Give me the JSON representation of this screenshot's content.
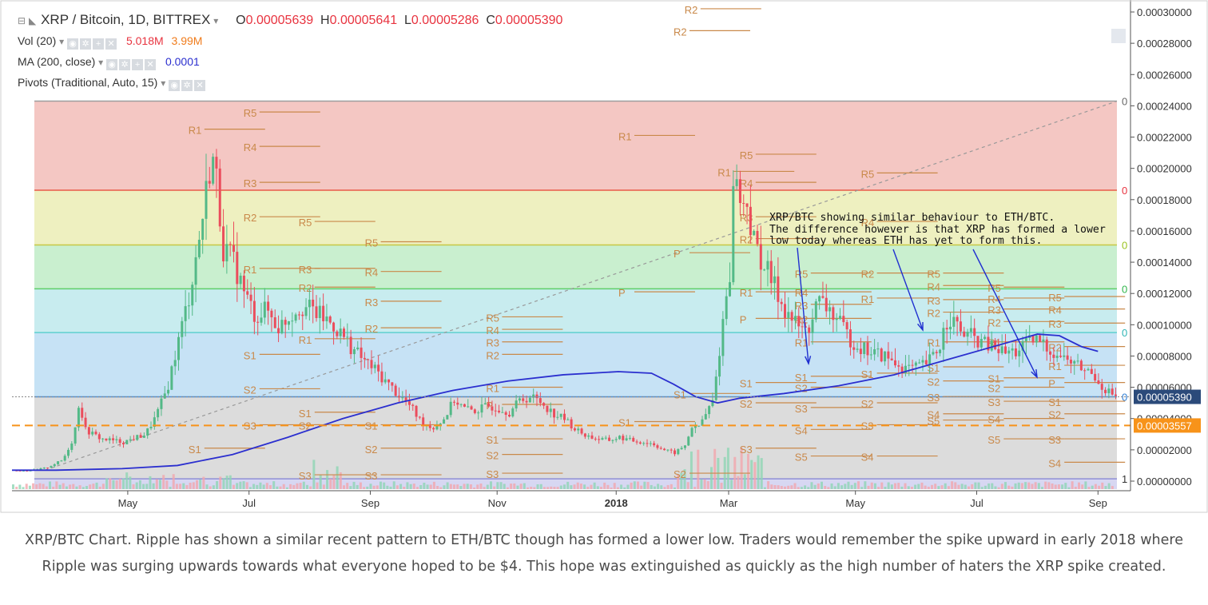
{
  "header": {
    "title": "XRP / Bitcoin, 1D, BITTREX",
    "ohlc": [
      {
        "k": "O",
        "v": "0.00005639"
      },
      {
        "k": "H",
        "v": "0.00005641"
      },
      {
        "k": "L",
        "v": "0.00005286"
      },
      {
        "k": "C",
        "v": "0.00005390"
      }
    ],
    "vol_label": "Vol (20)",
    "vol_val1": "5.018M",
    "vol_val2": "3.99M",
    "ma_label": "MA (200, close)",
    "ma_val": "0.0001",
    "pivots_label": "Pivots (Traditional, Auto, 15)"
  },
  "annotation": "XRP/BTC showing similar behaviour to ETH/BTC.\nThe difference however is that XRP has formed a lower\nlow today whereas ETH has yet to form this.",
  "caption": "XRP/BTC Chart. Ripple has shown a similar recent pattern to ETH/BTC though has formed a lower low. Traders would remember the spike upward in early 2018 where Ripple was surging upwards towards what everyone hoped to be $4. This hope was extinguished as quickly as the high number of haters the XRP spike created.",
  "colors": {
    "up": "#53b987",
    "down": "#eb4d5c",
    "ma": "#2b2fcf",
    "pivot": "#c9894a",
    "fib_red": "#f4c7c3",
    "fib_yellow": "#eef0c0",
    "fib_green": "#c9efcf",
    "fib_teal": "#c8ecef",
    "fib_blue": "#c6e2f5",
    "fib_grey": "#dcdcdc",
    "fib_purple": "#d7d7f2",
    "price_tag": "#2b4a7a",
    "dashed_tag": "#f7931a"
  },
  "chart_data": {
    "type": "candlestick",
    "pair": "XRP / Bitcoin",
    "timeframe": "1D",
    "exchange": "BITTREX",
    "x_ticks": [
      "May",
      "Jul",
      "Sep",
      "Nov",
      "2018",
      "Mar",
      "May",
      "Jul",
      "Sep"
    ],
    "y_ticks": [
      "0.00030000",
      "0.00028000",
      "0.00026000",
      "0.00024000",
      "0.00022000",
      "0.00020000",
      "0.00018000",
      "0.00016000",
      "0.00014000",
      "0.00012000",
      "0.00010000",
      "0.00008000",
      "0.00006000",
      "0.00004000",
      "0.00002000",
      "0.00000000"
    ],
    "ylim": [
      0.0,
      0.0003
    ],
    "last_price": "0.00005390",
    "dashed_level": "0.00003557",
    "fib_levels": [
      {
        "price": 0.000243,
        "label": "0"
      },
      {
        "price": 0.000186,
        "label": "0"
      },
      {
        "price": 0.000151,
        "label": "0"
      },
      {
        "price": 0.000123,
        "label": "0"
      },
      {
        "price": 9.5e-05,
        "label": "0"
      },
      {
        "price": 5.39e-05,
        "label": "0"
      },
      {
        "price": 1.5e-06,
        "label": "1"
      }
    ],
    "price_path": [
      [
        0,
        6.8e-06
      ],
      [
        0.02,
        7e-06
      ],
      [
        0.03,
        8.5e-06
      ],
      [
        0.045,
        1.35e-05
      ],
      [
        0.055,
        2.8e-05
      ],
      [
        0.06,
        5.2e-05
      ],
      [
        0.065,
        3.3e-05
      ],
      [
        0.08,
        2.7e-05
      ],
      [
        0.1,
        2.5e-05
      ],
      [
        0.12,
        3e-05
      ],
      [
        0.13,
        4.2e-05
      ],
      [
        0.14,
        6e-05
      ],
      [
        0.15,
        9e-05
      ],
      [
        0.16,
        0.00012
      ],
      [
        0.17,
        0.00016
      ],
      [
        0.18,
        0.00021
      ],
      [
        0.185,
        0.00019
      ],
      [
        0.19,
        0.00015
      ],
      [
        0.2,
        0.00014
      ],
      [
        0.21,
        0.00012
      ],
      [
        0.22,
        0.000105
      ],
      [
        0.23,
        0.00011
      ],
      [
        0.24,
        9.8e-05
      ],
      [
        0.25,
        0.000105
      ],
      [
        0.26,
        0.000112
      ],
      [
        0.27,
        0.00011
      ],
      [
        0.28,
        0.000105
      ],
      [
        0.29,
        0.0001
      ],
      [
        0.3,
        9.2e-05
      ],
      [
        0.31,
        8.3e-05
      ],
      [
        0.32,
        7.6e-05
      ],
      [
        0.33,
        7e-05
      ],
      [
        0.34,
        6.2e-05
      ],
      [
        0.35,
        5.5e-05
      ],
      [
        0.36,
        4.8e-05
      ],
      [
        0.37,
        3.8e-05
      ],
      [
        0.38,
        3.4e-05
      ],
      [
        0.39,
        3.9e-05
      ],
      [
        0.4,
        5.2e-05
      ],
      [
        0.41,
        4.6e-05
      ],
      [
        0.42,
        4.5e-05
      ],
      [
        0.43,
        4.8e-05
      ],
      [
        0.44,
        4.7e-05
      ],
      [
        0.45,
        4.4e-05
      ],
      [
        0.46,
        5.2e-05
      ],
      [
        0.47,
        5.4e-05
      ],
      [
        0.48,
        5e-05
      ],
      [
        0.49,
        4.3e-05
      ],
      [
        0.5,
        4e-05
      ],
      [
        0.51,
        3.3e-05
      ],
      [
        0.52,
        2.9e-05
      ],
      [
        0.53,
        2.7e-05
      ],
      [
        0.54,
        2.6e-05
      ],
      [
        0.55,
        2.8e-05
      ],
      [
        0.56,
        2.6e-05
      ],
      [
        0.57,
        2.5e-05
      ],
      [
        0.58,
        2.4e-05
      ],
      [
        0.59,
        2e-05
      ],
      [
        0.6,
        1.8e-05
      ],
      [
        0.61,
        2.3e-05
      ],
      [
        0.615,
        3.5e-05
      ],
      [
        0.62,
        3.3e-05
      ],
      [
        0.63,
        4.5e-05
      ],
      [
        0.635,
        5.2e-05
      ],
      [
        0.64,
        8e-05
      ],
      [
        0.645,
        0.00011
      ],
      [
        0.65,
        0.000135
      ],
      [
        0.655,
        0.00021
      ],
      [
        0.66,
        0.00017
      ],
      [
        0.665,
        0.000185
      ],
      [
        0.67,
        0.000155
      ],
      [
        0.68,
        0.00014
      ],
      [
        0.69,
        0.000125
      ],
      [
        0.7,
        0.00011
      ],
      [
        0.71,
        0.0001
      ],
      [
        0.72,
        9.5e-05
      ],
      [
        0.73,
        0.000115
      ],
      [
        0.74,
        0.00011
      ],
      [
        0.75,
        0.0001
      ],
      [
        0.76,
        9e-05
      ],
      [
        0.77,
        8.5e-05
      ],
      [
        0.78,
        8.2e-05
      ],
      [
        0.79,
        8e-05
      ],
      [
        0.8,
        7.5e-05
      ],
      [
        0.81,
        7.2e-05
      ],
      [
        0.82,
        7.2e-05
      ],
      [
        0.83,
        7.6e-05
      ],
      [
        0.84,
        8.5e-05
      ],
      [
        0.845,
        0.0001
      ],
      [
        0.85,
        0.000105
      ],
      [
        0.86,
        9.5e-05
      ],
      [
        0.87,
        9.2e-05
      ],
      [
        0.88,
        8.8e-05
      ],
      [
        0.89,
        8.5e-05
      ],
      [
        0.9,
        8.2e-05
      ],
      [
        0.91,
        8.3e-05
      ],
      [
        0.92,
        8.8e-05
      ],
      [
        0.93,
        9e-05
      ],
      [
        0.94,
        8.4e-05
      ],
      [
        0.95,
        8e-05
      ],
      [
        0.96,
        7.6e-05
      ],
      [
        0.97,
        7.2e-05
      ],
      [
        0.98,
        6.8e-05
      ],
      [
        0.99,
        5.9e-05
      ],
      [
        1.0,
        5.39e-05
      ]
    ],
    "ma_path": [
      [
        0,
        7e-06
      ],
      [
        0.04,
        7e-06
      ],
      [
        0.1,
        8e-06
      ],
      [
        0.15,
        1e-05
      ],
      [
        0.2,
        1.7e-05
      ],
      [
        0.25,
        2.8e-05
      ],
      [
        0.3,
        4e-05
      ],
      [
        0.35,
        5e-05
      ],
      [
        0.4,
        5.8e-05
      ],
      [
        0.45,
        6.4e-05
      ],
      [
        0.5,
        6.8e-05
      ],
      [
        0.55,
        7e-05
      ],
      [
        0.58,
        6.9e-05
      ],
      [
        0.6,
        6.2e-05
      ],
      [
        0.62,
        5.4e-05
      ],
      [
        0.64,
        5e-05
      ],
      [
        0.66,
        5.3e-05
      ],
      [
        0.7,
        5.6e-05
      ],
      [
        0.75,
        6.1e-05
      ],
      [
        0.8,
        6.8e-05
      ],
      [
        0.85,
        7.8e-05
      ],
      [
        0.9,
        8.8e-05
      ],
      [
        0.93,
        9.4e-05
      ],
      [
        0.95,
        9.3e-05
      ],
      [
        0.97,
        8.6e-05
      ],
      [
        0.985,
        8.3e-05
      ]
    ],
    "pivots": [
      {
        "x": 0.16,
        "y": 0.000222,
        "label": "R1"
      },
      {
        "x": 0.21,
        "y": 0.000233,
        "label": "R5"
      },
      {
        "x": 0.21,
        "y": 0.000211,
        "label": "R4"
      },
      {
        "x": 0.21,
        "y": 0.000188,
        "label": "R3"
      },
      {
        "x": 0.21,
        "y": 0.000166,
        "label": "R2"
      },
      {
        "x": 0.21,
        "y": 0.000133,
        "label": "R1"
      },
      {
        "x": 0.21,
        "y": 7.8e-05,
        "label": "S1"
      },
      {
        "x": 0.21,
        "y": 5.6e-05,
        "label": "S2"
      },
      {
        "x": 0.21,
        "y": 3.3e-05,
        "label": "S3"
      },
      {
        "x": 0.16,
        "y": 1.8e-05,
        "label": "S1"
      },
      {
        "x": 0.26,
        "y": 0.000163,
        "label": "R5"
      },
      {
        "x": 0.26,
        "y": 0.000133,
        "label": "R3"
      },
      {
        "x": 0.26,
        "y": 0.000121,
        "label": "R2"
      },
      {
        "x": 0.26,
        "y": 8.8e-05,
        "label": "R1"
      },
      {
        "x": 0.26,
        "y": 4.1e-05,
        "label": "S1"
      },
      {
        "x": 0.26,
        "y": 3.3e-05,
        "label": "S2"
      },
      {
        "x": 0.26,
        "y": 1e-06,
        "label": "S3"
      },
      {
        "x": 0.32,
        "y": 0.00015,
        "label": "R5"
      },
      {
        "x": 0.32,
        "y": 0.000131,
        "label": "R4"
      },
      {
        "x": 0.32,
        "y": 0.000112,
        "label": "R3"
      },
      {
        "x": 0.32,
        "y": 9.5e-05,
        "label": "R2"
      },
      {
        "x": 0.32,
        "y": 3.3e-05,
        "label": "S1"
      },
      {
        "x": 0.32,
        "y": 1.8e-05,
        "label": "S2"
      },
      {
        "x": 0.32,
        "y": 1e-06,
        "label": "S3"
      },
      {
        "x": 0.43,
        "y": 0.000102,
        "label": "R5"
      },
      {
        "x": 0.43,
        "y": 9.4e-05,
        "label": "R4"
      },
      {
        "x": 0.43,
        "y": 8.6e-05,
        "label": "R3"
      },
      {
        "x": 0.43,
        "y": 7.8e-05,
        "label": "R2"
      },
      {
        "x": 0.43,
        "y": 5.7e-05,
        "label": "R1"
      },
      {
        "x": 0.43,
        "y": 4.6e-05,
        "label": "P"
      },
      {
        "x": 0.43,
        "y": 2.4e-05,
        "label": "S1"
      },
      {
        "x": 0.43,
        "y": 1.4e-05,
        "label": "S2"
      },
      {
        "x": 0.43,
        "y": 2e-06,
        "label": "S3"
      },
      {
        "x": 0.55,
        "y": 0.000218,
        "label": "R1"
      },
      {
        "x": 0.6,
        "y": 0.000143,
        "label": "P"
      },
      {
        "x": 0.55,
        "y": 0.000118,
        "label": "P"
      },
      {
        "x": 0.55,
        "y": 3.5e-05,
        "label": "S1"
      },
      {
        "x": 0.6,
        "y": 5.3e-05,
        "label": "S1"
      },
      {
        "x": 0.6,
        "y": 2e-06,
        "label": "S2"
      },
      {
        "x": 0.66,
        "y": 0.000206,
        "label": "R5"
      },
      {
        "x": 0.64,
        "y": 0.000195,
        "label": "R1"
      },
      {
        "x": 0.66,
        "y": 0.000188,
        "label": "R4"
      },
      {
        "x": 0.66,
        "y": 0.000166,
        "label": "R3"
      },
      {
        "x": 0.66,
        "y": 0.000152,
        "label": "R2"
      },
      {
        "x": 0.66,
        "y": 0.000118,
        "label": "R1"
      },
      {
        "x": 0.66,
        "y": 0.000101,
        "label": "P"
      },
      {
        "x": 0.66,
        "y": 6e-05,
        "label": "S1"
      },
      {
        "x": 0.66,
        "y": 4.7e-05,
        "label": "S2"
      },
      {
        "x": 0.66,
        "y": 1.8e-05,
        "label": "S3"
      },
      {
        "x": 0.71,
        "y": 0.00013,
        "label": "R5"
      },
      {
        "x": 0.71,
        "y": 0.000118,
        "label": "R4"
      },
      {
        "x": 0.71,
        "y": 0.00011,
        "label": "R3"
      },
      {
        "x": 0.71,
        "y": 0.000101,
        "label": "R2"
      },
      {
        "x": 0.71,
        "y": 8.6e-05,
        "label": "R1"
      },
      {
        "x": 0.71,
        "y": 6.4e-05,
        "label": "S1"
      },
      {
        "x": 0.71,
        "y": 5.7e-05,
        "label": "S2"
      },
      {
        "x": 0.71,
        "y": 4.4e-05,
        "label": "S3"
      },
      {
        "x": 0.71,
        "y": 3e-05,
        "label": "S4"
      },
      {
        "x": 0.71,
        "y": 1.3e-05,
        "label": "S5"
      },
      {
        "x": 0.77,
        "y": 0.000194,
        "label": "R5"
      },
      {
        "x": 0.77,
        "y": 0.000163,
        "label": "R4"
      },
      {
        "x": 0.77,
        "y": 0.00013,
        "label": "R2"
      },
      {
        "x": 0.77,
        "y": 0.000114,
        "label": "R1"
      },
      {
        "x": 0.77,
        "y": 6.6e-05,
        "label": "S1"
      },
      {
        "x": 0.77,
        "y": 4.7e-05,
        "label": "S2"
      },
      {
        "x": 0.77,
        "y": 3.3e-05,
        "label": "S3"
      },
      {
        "x": 0.77,
        "y": 1.3e-05,
        "label": "S4"
      },
      {
        "x": 0.83,
        "y": 0.00013,
        "label": "R5"
      },
      {
        "x": 0.83,
        "y": 0.000122,
        "label": "R4"
      },
      {
        "x": 0.83,
        "y": 0.000113,
        "label": "R3"
      },
      {
        "x": 0.83,
        "y": 0.000105,
        "label": "R2"
      },
      {
        "x": 0.83,
        "y": 8.6e-05,
        "label": "R1"
      },
      {
        "x": 0.83,
        "y": 7e-05,
        "label": "S1"
      },
      {
        "x": 0.83,
        "y": 6.1e-05,
        "label": "S2"
      },
      {
        "x": 0.83,
        "y": 5.1e-05,
        "label": "S3"
      },
      {
        "x": 0.83,
        "y": 4e-05,
        "label": "S4"
      },
      {
        "x": 0.83,
        "y": 3.6e-05,
        "label": "S5"
      },
      {
        "x": 0.885,
        "y": 0.000121,
        "label": "R5"
      },
      {
        "x": 0.885,
        "y": 0.000114,
        "label": "R4"
      },
      {
        "x": 0.885,
        "y": 0.000107,
        "label": "R3"
      },
      {
        "x": 0.885,
        "y": 9.9e-05,
        "label": "R2"
      },
      {
        "x": 0.885,
        "y": 8.6e-05,
        "label": "R1"
      },
      {
        "x": 0.885,
        "y": 6.3e-05,
        "label": "S1"
      },
      {
        "x": 0.885,
        "y": 5.7e-05,
        "label": "S2"
      },
      {
        "x": 0.885,
        "y": 4.8e-05,
        "label": "S3"
      },
      {
        "x": 0.885,
        "y": 3.7e-05,
        "label": "S4"
      },
      {
        "x": 0.885,
        "y": 2.4e-05,
        "label": "S5"
      },
      {
        "x": 0.94,
        "y": 0.000115,
        "label": "R5"
      },
      {
        "x": 0.94,
        "y": 0.000107,
        "label": "R4"
      },
      {
        "x": 0.94,
        "y": 9.8e-05,
        "label": "R3"
      },
      {
        "x": 0.94,
        "y": 8.3e-05,
        "label": "R2"
      },
      {
        "x": 0.94,
        "y": 7.1e-05,
        "label": "R1"
      },
      {
        "x": 0.94,
        "y": 6e-05,
        "label": "P"
      },
      {
        "x": 0.94,
        "y": 4.8e-05,
        "label": "S1"
      },
      {
        "x": 0.94,
        "y": 4e-05,
        "label": "S2"
      },
      {
        "x": 0.94,
        "y": 2.4e-05,
        "label": "S3"
      },
      {
        "x": 0.94,
        "y": 9e-06,
        "label": "S4"
      },
      {
        "x": 0.61,
        "y": 0.000299,
        "label": "R2"
      },
      {
        "x": 0.6,
        "y": 0.000285,
        "label": "R2"
      }
    ]
  }
}
